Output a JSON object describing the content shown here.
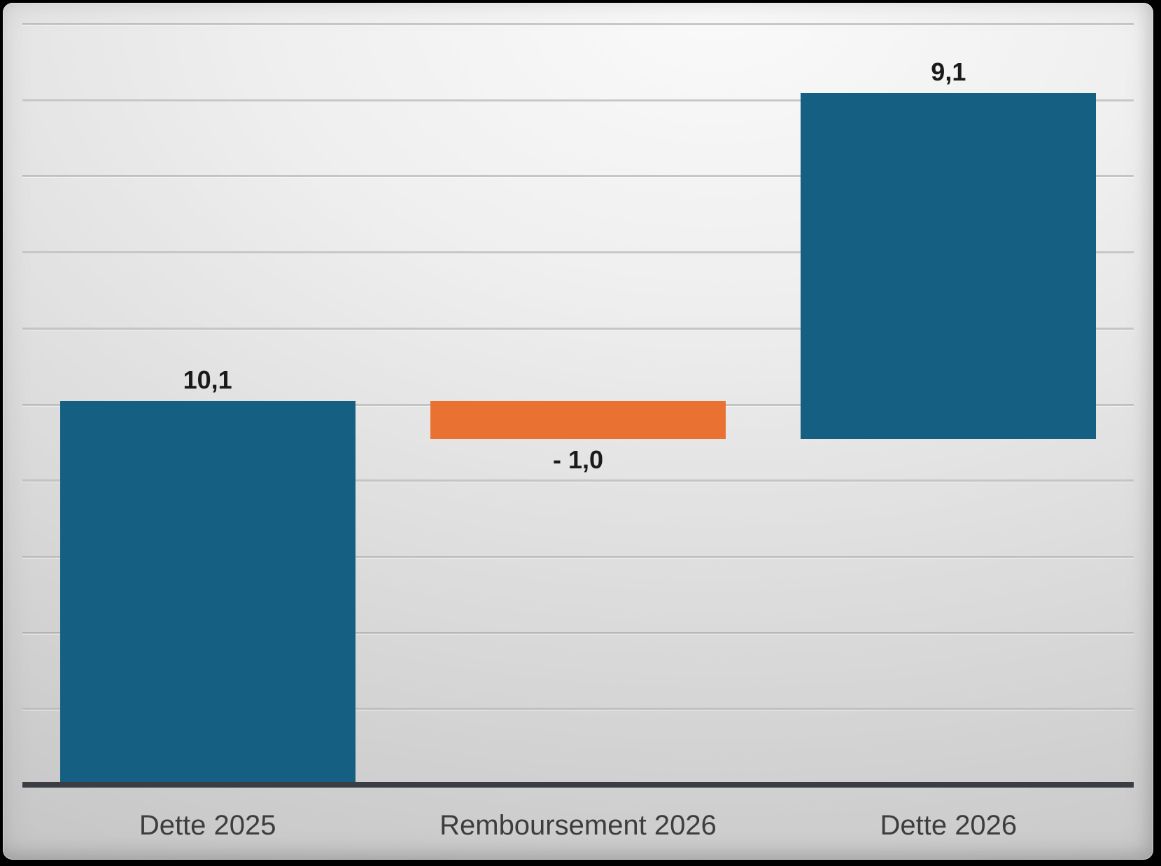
{
  "chart_data": {
    "type": "bar",
    "subtype": "waterfall",
    "title": "",
    "xlabel": "",
    "ylabel": "",
    "categories": [
      "Dette 2025",
      "Remboursement 2026",
      "Dette 2026"
    ],
    "values": [
      10.1,
      -1.0,
      9.1
    ],
    "data_labels": [
      "10,1",
      "- 1,0",
      "9,1"
    ],
    "decimal_separator": ",",
    "series": [
      {
        "name": "Dette 2025",
        "value": 10.1,
        "label": "10,1",
        "color": "#156082",
        "bar_span": [
          0,
          10.1
        ],
        "label_position": "above"
      },
      {
        "name": "Remboursement 2026",
        "value": -1.0,
        "label": "- 1,0",
        "color": "#E97132",
        "bar_span": [
          9.1,
          10.1
        ],
        "label_position": "below"
      },
      {
        "name": "Dette 2026",
        "value": 9.1,
        "label": "9,1",
        "color": "#156082",
        "bar_span": [
          9.1,
          18.2
        ],
        "label_position": "above"
      }
    ],
    "ylim": [
      0,
      20
    ],
    "gridline_step": 2,
    "grid": true,
    "legend": false,
    "y_tick_labels_visible": false
  },
  "colors": {
    "bar_blue": "#156082",
    "bar_orange": "#E97132",
    "gridline": "#c7c7c7",
    "axis_line": "#3a3d42",
    "data_label_text": "#1a1a1a",
    "category_label_text": "#3d3d3d",
    "background_light": "#fafafa",
    "background_dark": "#c2c2c2",
    "frame_border": "#000000"
  }
}
